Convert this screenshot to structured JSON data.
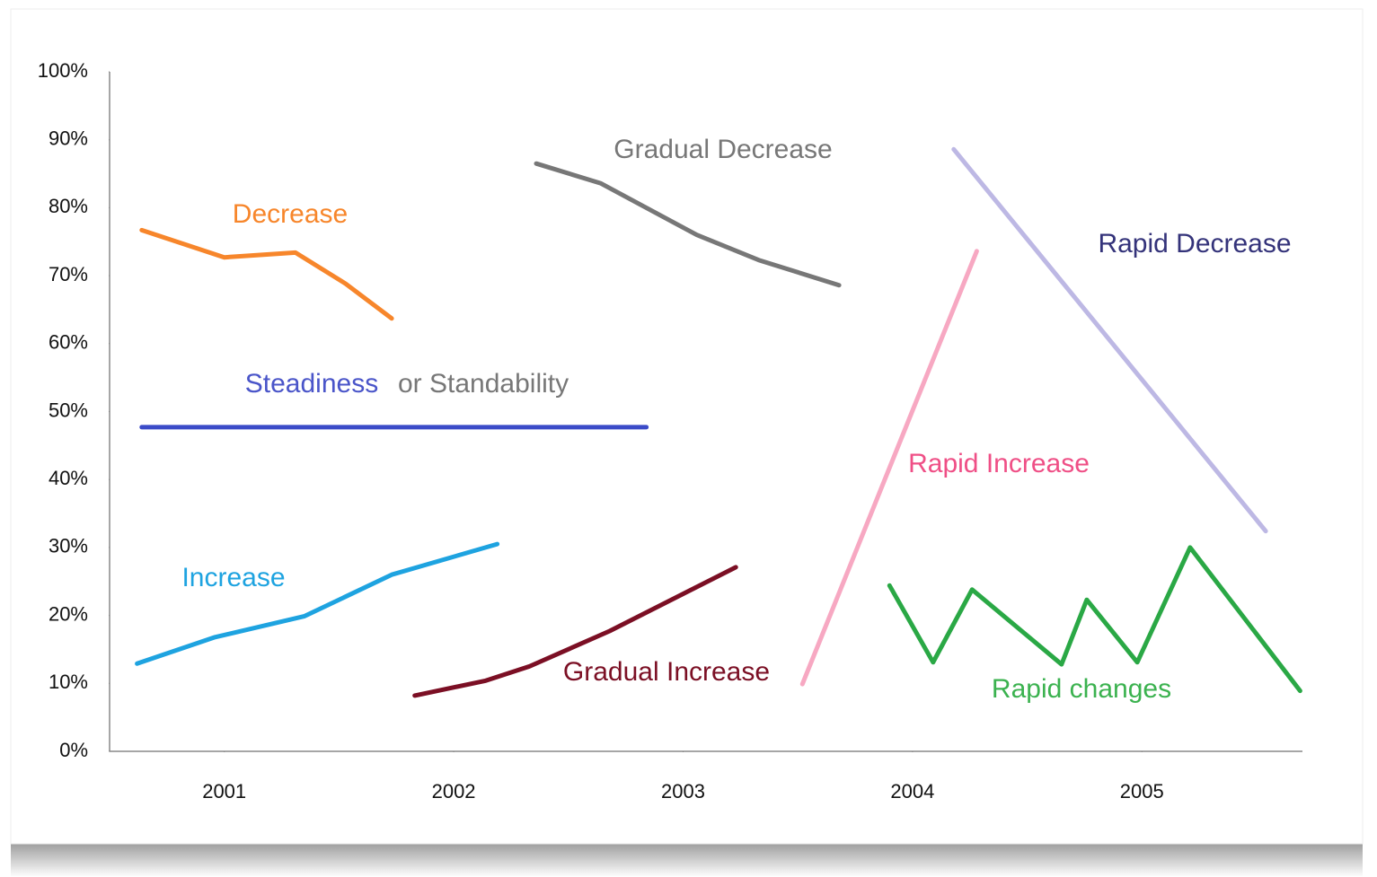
{
  "chart_data": {
    "type": "line",
    "xlim": [
      2000.5,
      2005.7
    ],
    "xticks": [
      2001,
      2002,
      2003,
      2004,
      2005
    ],
    "ylim": [
      0,
      100
    ],
    "yticks": [
      {
        "value": 0,
        "label": "0%"
      },
      {
        "value": 10,
        "label": "10%"
      },
      {
        "value": 20,
        "label": "20%"
      },
      {
        "value": 30,
        "label": "30%"
      },
      {
        "value": 40,
        "label": "40%"
      },
      {
        "value": 50,
        "label": "50%"
      },
      {
        "value": 60,
        "label": "60%"
      },
      {
        "value": 70,
        "label": "70%"
      },
      {
        "value": 80,
        "label": "80%"
      },
      {
        "value": 90,
        "label": "90%"
      },
      {
        "value": 100,
        "label": "100%"
      }
    ],
    "grid": false,
    "series": [
      {
        "name": "Decrease",
        "color": "#f7862b",
        "label_color": "#f7862b",
        "x": [
          2000.64,
          2001.0,
          2001.31,
          2001.53,
          2001.73
        ],
        "values": [
          76.7,
          72.7,
          73.4,
          68.8,
          63.7
        ]
      },
      {
        "name": "Steadiness",
        "color": "#3b4bc8",
        "label_color": "#4a55c9",
        "x": [
          2000.64,
          2002.84
        ],
        "values": [
          47.7,
          47.7
        ]
      },
      {
        "name": "Increase",
        "color": "#1ea3e0",
        "label_color": "#1ea3e0",
        "x": [
          2000.62,
          2000.96,
          2001.35,
          2001.73,
          2002.19
        ],
        "values": [
          12.9,
          16.8,
          19.9,
          26.0,
          30.5
        ]
      },
      {
        "name": "Gradual Decrease",
        "color": "#777777",
        "label_color": "#777777",
        "x": [
          2002.36,
          2002.64,
          2003.06,
          2003.33,
          2003.68
        ],
        "values": [
          86.5,
          83.6,
          76.0,
          72.3,
          68.6
        ]
      },
      {
        "name": "Gradual Increase",
        "color": "#7b0f24",
        "label_color": "#7b0f24",
        "x": [
          2001.83,
          2002.14,
          2002.33,
          2002.68,
          2003.23
        ],
        "values": [
          8.2,
          10.4,
          12.5,
          17.7,
          27.1
        ]
      },
      {
        "name": "Rapid Increase",
        "color": "#f7a8c2",
        "label_color": "#ef4f86",
        "x": [
          2003.52,
          2004.28
        ],
        "values": [
          9.9,
          73.6
        ]
      },
      {
        "name": "Rapid Decrease",
        "color": "#bdb8e4",
        "label_color": "#34337a",
        "x": [
          2004.18,
          2005.54
        ],
        "values": [
          88.6,
          32.4
        ]
      },
      {
        "name": "Rapid changes",
        "color": "#2aa845",
        "label_color": "#3bb24f",
        "x": [
          2003.9,
          2004.09,
          2004.26,
          2004.65,
          2004.76,
          2004.98,
          2005.21,
          2005.69
        ],
        "values": [
          24.4,
          13.1,
          23.8,
          12.8,
          22.3,
          13.1,
          30.0,
          8.9
        ]
      }
    ],
    "annotations": [
      {
        "text": "or Standability",
        "color": "#777777"
      }
    ]
  }
}
